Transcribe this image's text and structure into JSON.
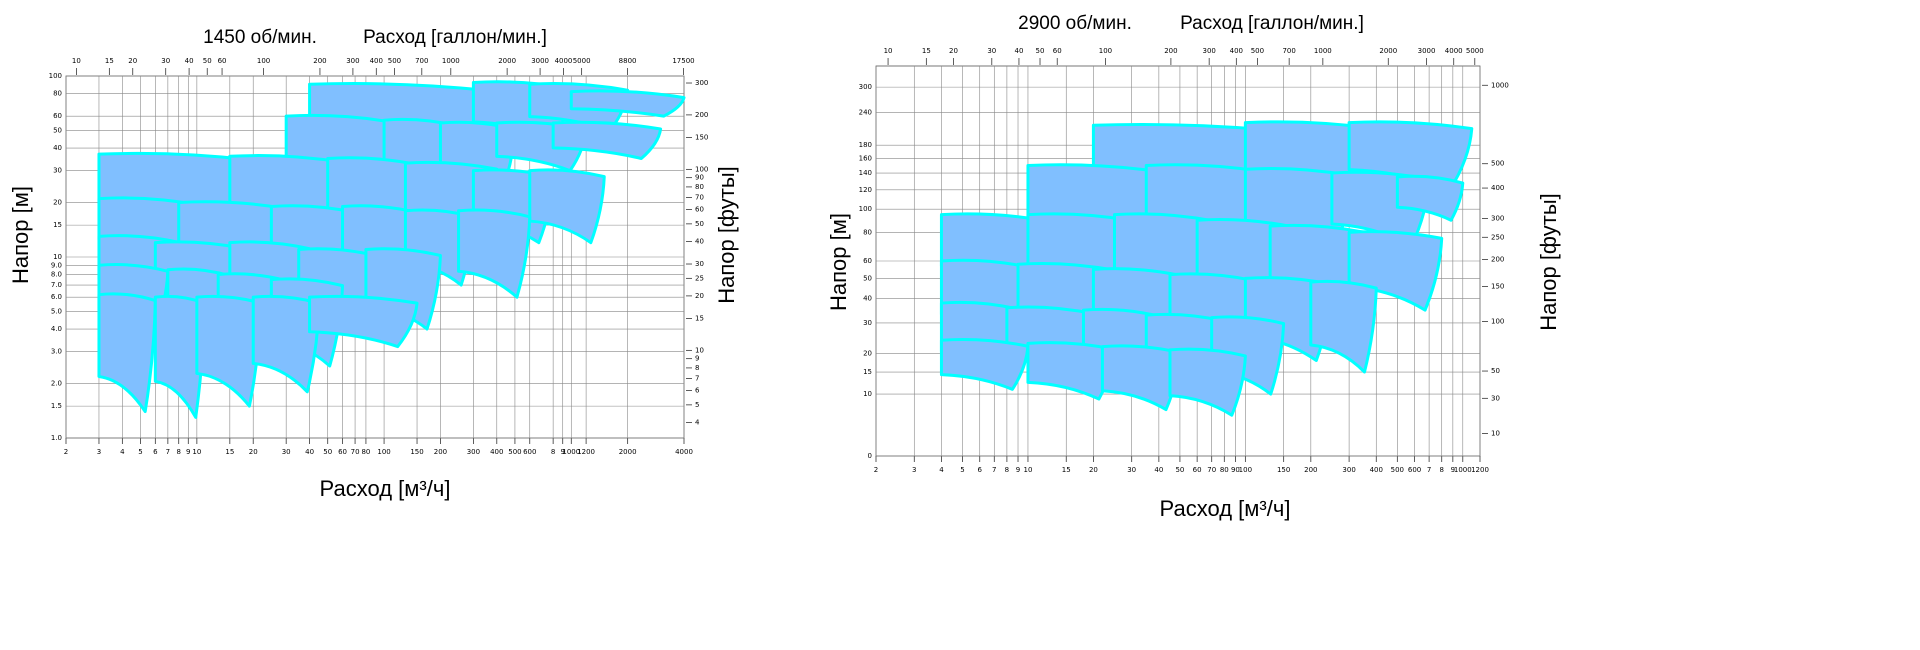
{
  "chart_data": [
    {
      "type": "area",
      "title": "1450 об/мин.",
      "x2label": "Расход [галлон/мин.]",
      "ylabel": "Напор [м]",
      "y2label": "Напор [футы]",
      "xlabel": "Расход [м³/ч]",
      "xscale": "log",
      "yscale": "log",
      "grid": true,
      "color": "#80bfff",
      "edge_color": "#00ffff",
      "xlim": [
        2,
        4000
      ],
      "ylim": [
        1,
        100
      ],
      "x2lim": [
        8.8,
        17612
      ],
      "y2lim": [
        3.28,
        328
      ],
      "xticks": [
        2,
        3,
        4,
        5,
        6,
        7,
        8,
        9,
        10,
        15,
        20,
        30,
        40,
        50,
        60,
        70,
        80,
        100,
        150,
        200,
        300,
        400,
        500,
        600,
        {
          "value": 800,
          "label": "8"
        },
        {
          "value": 900,
          "label": "9"
        },
        1000,
        1200,
        2000,
        4000
      ],
      "yticks": [
        {
          "value": 1,
          "label": "1.0"
        },
        {
          "value": 1.5,
          "label": "1.5"
        },
        {
          "value": 2,
          "label": "2.0"
        },
        {
          "value": 3,
          "label": "3.0"
        },
        {
          "value": 4,
          "label": "4.0"
        },
        {
          "value": 5,
          "label": "5.0"
        },
        {
          "value": 6,
          "label": "6.0"
        },
        {
          "value": 7,
          "label": "7.0"
        },
        {
          "value": 8,
          "label": "8.0"
        },
        {
          "value": 9,
          "label": "9.0"
        },
        10,
        15,
        20,
        30,
        40,
        50,
        60,
        80,
        100
      ],
      "x2ticks": [
        10,
        15,
        20,
        30,
        40,
        50,
        60,
        100,
        200,
        300,
        400,
        500,
        700,
        1000,
        2000,
        3000,
        4000,
        5000,
        8800,
        17500
      ],
      "y2ticks": [
        4,
        5,
        6,
        7,
        8,
        9,
        10,
        15,
        20,
        25,
        30,
        40,
        50,
        60,
        70,
        80,
        90,
        100,
        150,
        200,
        300
      ],
      "tiles": [
        {
          "q": [
            40,
            350
          ],
          "h": [
            90,
            35
          ]
        },
        {
          "q": [
            300,
            1000
          ],
          "h": [
            92,
            45
          ]
        },
        {
          "q": [
            600,
            2000
          ],
          "h": [
            90,
            50
          ]
        },
        {
          "q": [
            1000,
            4000
          ],
          "h": [
            82,
            60
          ]
        },
        {
          "q": [
            30,
            110
          ],
          "h": [
            60,
            25
          ]
        },
        {
          "q": [
            100,
            250
          ],
          "h": [
            57,
            25
          ]
        },
        {
          "q": [
            200,
            500
          ],
          "h": [
            55,
            23
          ]
        },
        {
          "q": [
            400,
            1200
          ],
          "h": [
            55,
            30
          ]
        },
        {
          "q": [
            800,
            3000
          ],
          "h": [
            55,
            35
          ]
        },
        {
          "q": [
            3,
            20
          ],
          "h": [
            37,
            15
          ]
        },
        {
          "q": [
            15,
            60
          ],
          "h": [
            36,
            15
          ]
        },
        {
          "q": [
            50,
            150
          ],
          "h": [
            35,
            13
          ]
        },
        {
          "q": [
            130,
            400
          ],
          "h": [
            33,
            13
          ]
        },
        {
          "q": [
            300,
            800
          ],
          "h": [
            30,
            12
          ]
        },
        {
          "q": [
            600,
            1500
          ],
          "h": [
            30,
            12
          ]
        },
        {
          "q": [
            3,
            10
          ],
          "h": [
            21,
            10
          ]
        },
        {
          "q": [
            8,
            30
          ],
          "h": [
            20,
            9
          ]
        },
        {
          "q": [
            25,
            70
          ],
          "h": [
            19,
            8
          ]
        },
        {
          "q": [
            60,
            150
          ],
          "h": [
            19,
            7
          ]
        },
        {
          "q": [
            130,
            300
          ],
          "h": [
            18,
            7
          ]
        },
        {
          "q": [
            250,
            600
          ],
          "h": [
            18,
            6
          ]
        },
        {
          "q": [
            3,
            8
          ],
          "h": [
            13,
            6
          ]
        },
        {
          "q": [
            6,
            18
          ],
          "h": [
            12,
            5.5
          ]
        },
        {
          "q": [
            15,
            40
          ],
          "h": [
            12,
            5
          ]
        },
        {
          "q": [
            35,
            90
          ],
          "h": [
            11,
            4.5
          ]
        },
        {
          "q": [
            80,
            200
          ],
          "h": [
            11,
            4
          ]
        },
        {
          "q": [
            3,
            7
          ],
          "h": [
            9,
            4
          ]
        },
        {
          "q": [
            7,
            15
          ],
          "h": [
            8.5,
            3.5
          ]
        },
        {
          "q": [
            13,
            30
          ],
          "h": [
            8,
            3
          ]
        },
        {
          "q": [
            25,
            60
          ],
          "h": [
            7.5,
            2.5
          ]
        },
        {
          "q": [
            3,
            6
          ],
          "h": [
            6.2,
            1.4
          ]
        },
        {
          "q": [
            6,
            11
          ],
          "h": [
            6,
            1.3
          ]
        },
        {
          "q": [
            10,
            22
          ],
          "h": [
            6,
            1.5
          ]
        },
        {
          "q": [
            20,
            45
          ],
          "h": [
            6,
            1.8
          ]
        },
        {
          "q": [
            40,
            150
          ],
          "h": [
            6,
            3.2
          ]
        }
      ]
    },
    {
      "type": "area",
      "title": "2900 об/мин.",
      "x2label": "Расход [галлон/мин.]",
      "ylabel": "Напор [м]",
      "y2label": "Напор [футы]",
      "xlabel": "Расход [м³/ч]",
      "xscale": "log",
      "yscale": "log",
      "grid": true,
      "color": "#80bfff",
      "edge_color": "#00ffff",
      "xlim": [
        2,
        1200
      ],
      "ylim": [
        0,
        360
      ],
      "x2lim": [
        8.8,
        5284
      ],
      "y2lim": [
        0,
        1181
      ],
      "xticks": [
        2,
        3,
        4,
        5,
        6,
        7,
        8,
        9,
        10,
        15,
        20,
        30,
        40,
        50,
        60,
        70,
        80,
        90,
        100,
        150,
        200,
        300,
        400,
        500,
        600,
        {
          "value": 700,
          "label": "7"
        },
        {
          "value": 800,
          "label": "8"
        },
        {
          "value": 900,
          "label": "9"
        },
        1000,
        1200
      ],
      "yticks": [
        0,
        10,
        15,
        20,
        30,
        40,
        50,
        60,
        80,
        100,
        120,
        140,
        160,
        180,
        240,
        300
      ],
      "x2ticks": [
        10,
        15,
        20,
        30,
        40,
        50,
        60,
        100,
        200,
        300,
        400,
        500,
        700,
        1000,
        2000,
        3000,
        4000,
        5000
      ],
      "y2ticks": [
        10,
        30,
        50,
        100,
        150,
        200,
        250,
        300,
        400,
        500,
        1000
      ],
      "tiles": [
        {
          "q": [
            20,
            150
          ],
          "h": [
            215,
            100
          ]
        },
        {
          "q": [
            100,
            400
          ],
          "h": [
            220,
            110
          ]
        },
        {
          "q": [
            300,
            1100
          ],
          "h": [
            220,
            120
          ]
        },
        {
          "q": [
            10,
            40
          ],
          "h": [
            150,
            60
          ]
        },
        {
          "q": [
            35,
            120
          ],
          "h": [
            150,
            55
          ]
        },
        {
          "q": [
            100,
            300
          ],
          "h": [
            145,
            55
          ]
        },
        {
          "q": [
            250,
            700
          ],
          "h": [
            140,
            70
          ]
        },
        {
          "q": [
            500,
            1000
          ],
          "h": [
            135,
            90
          ]
        },
        {
          "q": [
            4,
            12
          ],
          "h": [
            95,
            45
          ]
        },
        {
          "q": [
            10,
            30
          ],
          "h": [
            95,
            40
          ]
        },
        {
          "q": [
            25,
            70
          ],
          "h": [
            95,
            35
          ]
        },
        {
          "q": [
            60,
            160
          ],
          "h": [
            90,
            35
          ]
        },
        {
          "q": [
            130,
            350
          ],
          "h": [
            85,
            30
          ]
        },
        {
          "q": [
            300,
            800
          ],
          "h": [
            80,
            35
          ]
        },
        {
          "q": [
            4,
            10
          ],
          "h": [
            60,
            25
          ]
        },
        {
          "q": [
            9,
            25
          ],
          "h": [
            58,
            22
          ]
        },
        {
          "q": [
            20,
            50
          ],
          "h": [
            55,
            20
          ]
        },
        {
          "q": [
            45,
            110
          ],
          "h": [
            52,
            18
          ]
        },
        {
          "q": [
            100,
            250
          ],
          "h": [
            50,
            18
          ]
        },
        {
          "q": [
            200,
            400
          ],
          "h": [
            48,
            15
          ]
        },
        {
          "q": [
            4,
            9
          ],
          "h": [
            38,
            15
          ]
        },
        {
          "q": [
            8,
            20
          ],
          "h": [
            36,
            13
          ]
        },
        {
          "q": [
            18,
            40
          ],
          "h": [
            35,
            11
          ]
        },
        {
          "q": [
            35,
            80
          ],
          "h": [
            33,
            10
          ]
        },
        {
          "q": [
            70,
            150
          ],
          "h": [
            32,
            10
          ]
        },
        {
          "q": [
            4,
            10
          ],
          "h": [
            24,
            11
          ]
        },
        {
          "q": [
            10,
            25
          ],
          "h": [
            23,
            9
          ]
        },
        {
          "q": [
            22,
            50
          ],
          "h": [
            22,
            7
          ]
        },
        {
          "q": [
            45,
            100
          ],
          "h": [
            21,
            6
          ]
        }
      ]
    }
  ]
}
